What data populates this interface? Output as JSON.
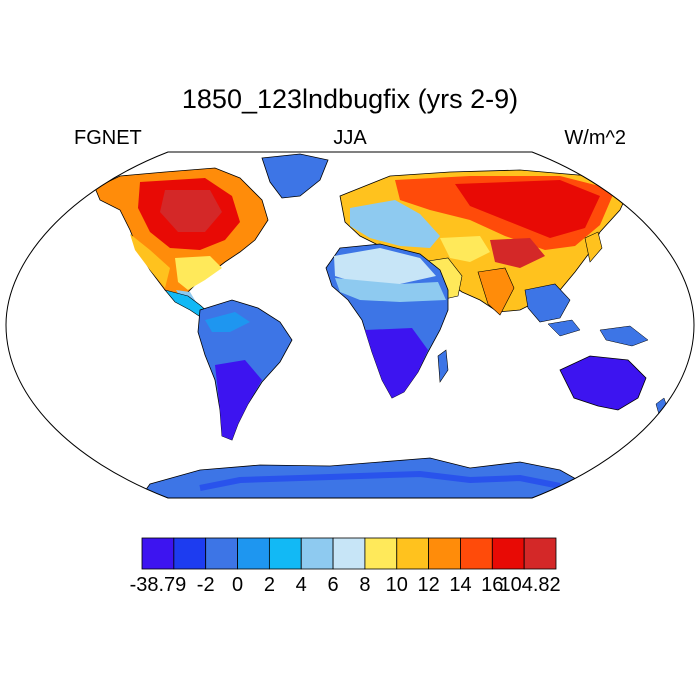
{
  "title": "1850_123lndbugfix (yrs 2-9)",
  "subtitle": {
    "left": "FGNET",
    "center": "JJA",
    "right": "W/m^2"
  },
  "colorbar": {
    "colors": [
      "#3d14f0",
      "#1d3cf0",
      "#3d75e6",
      "#1e96f0",
      "#12b9f5",
      "#8ecaf0",
      "#c7e5f7",
      "#ffe95a",
      "#ffc21e",
      "#ff8c0a",
      "#ff4b0a",
      "#e80a05",
      "#d42828"
    ],
    "labels": [
      "-38.79",
      "-2",
      "0",
      "2",
      "4",
      "6",
      "8",
      "10",
      "12",
      "14",
      "16",
      "104.82"
    ]
  },
  "map_colors": {
    "ocean": "#ffffff",
    "coast": "#000000",
    "projection": "Robinson"
  }
}
